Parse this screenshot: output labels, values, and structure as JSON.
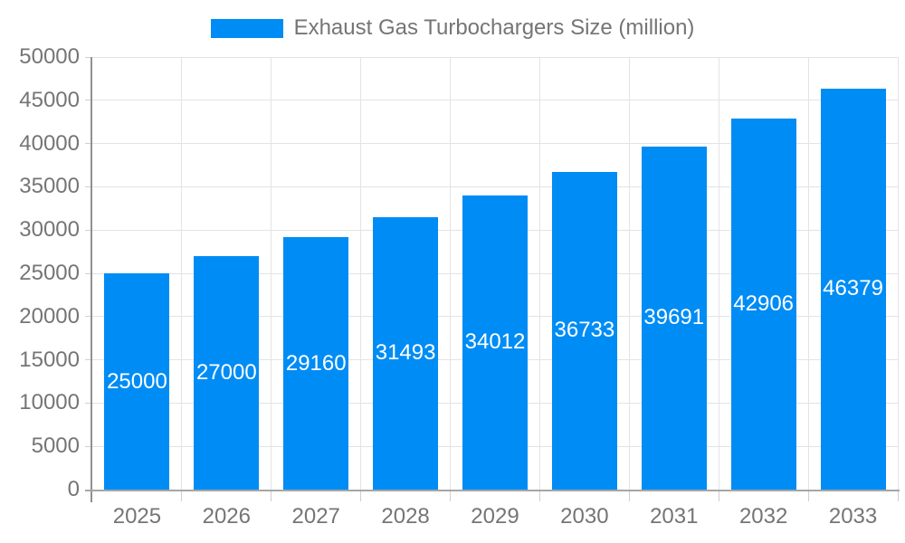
{
  "chart_data": {
    "type": "bar",
    "title": "",
    "legend": {
      "label": "Exhaust Gas Turbochargers Size (million)",
      "position": "top"
    },
    "categories": [
      "2025",
      "2026",
      "2027",
      "2028",
      "2029",
      "2030",
      "2031",
      "2032",
      "2033"
    ],
    "series": [
      {
        "name": "Exhaust Gas Turbochargers Size (million)",
        "values": [
          25000,
          27000,
          29160,
          31493,
          34012,
          36733,
          39691,
          42906,
          46379
        ]
      }
    ],
    "value_labels": [
      "25000",
      "27000",
      "29160",
      "31493",
      "34012",
      "36733",
      "39691",
      "42906",
      "46379"
    ],
    "value_label_position": "inside-center",
    "xlabel": "",
    "ylabel": "",
    "ylim": [
      0,
      50000
    ],
    "y_ticks": [
      0,
      5000,
      10000,
      15000,
      20000,
      25000,
      30000,
      35000,
      40000,
      45000,
      50000
    ],
    "grid": true
  },
  "colors": {
    "bar": "#008cf5",
    "bar_label": "#ffffff",
    "grid": "#e3e3e3",
    "axis": "#909090",
    "axis_bottom": "#a6a6a6",
    "tick": "#cfcfcf",
    "text": "#757575",
    "background": "#ffffff"
  }
}
